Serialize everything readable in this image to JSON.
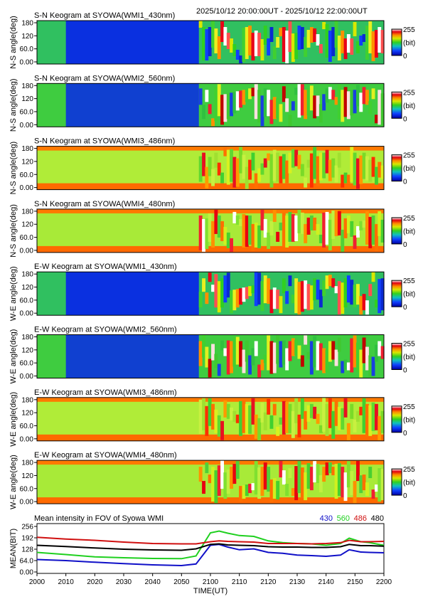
{
  "header": {
    "time_range": "2025/10/12 20:00:00UT - 2025/10/12 22:00:00UT"
  },
  "panels": [
    {
      "title": "S-N Keogram at SYOWA(WMI1_430nm)",
      "ylabel": "N-S angle(deg)",
      "kind": "blue"
    },
    {
      "title": "S-N Keogram at SYOWA(WMI2_560nm)",
      "ylabel": "N-S angle(deg)",
      "kind": "green"
    },
    {
      "title": "S-N Keogram at SYOWA(WMI3_486nm)",
      "ylabel": "N-S angle(deg)",
      "kind": "hbeta"
    },
    {
      "title": "S-N Keogram at SYOWA(WMI4_480nm)",
      "ylabel": "N-S angle(deg)",
      "kind": "bg"
    },
    {
      "title": "E-W Keogram at SYOWA(WMI1_430nm)",
      "ylabel": "W-E angle(deg)",
      "kind": "blue"
    },
    {
      "title": "E-W Keogram at SYOWA(WMI2_560nm)",
      "ylabel": "W-E angle(deg)",
      "kind": "green"
    },
    {
      "title": "E-W Keogram at SYOWA(WMI3_486nm)",
      "ylabel": "W-E angle(deg)",
      "kind": "hbeta"
    },
    {
      "title": "E-W Keogram at SYOWA(WMI4_480nm)",
      "ylabel": "W-E angle(deg)",
      "kind": "bg"
    }
  ],
  "angle_ticks": [
    "0.00",
    "60.0",
    "120",
    "180"
  ],
  "colorbar": {
    "max_label": "255",
    "unit_label": "(bit)",
    "min_label": "0"
  },
  "mean_panel": {
    "title": "Mean intensity in FOV of Syowa WMI",
    "ylabel": "MEAN(BIT)",
    "yticks": [
      "0.00",
      "64.0",
      "128",
      "192",
      "256"
    ],
    "legend": [
      {
        "label": "430",
        "color": "#1010c8"
      },
      {
        "label": "560",
        "color": "#1fd01f"
      },
      {
        "label": "486",
        "color": "#d01010"
      },
      {
        "label": "480",
        "color": "#000000"
      }
    ]
  },
  "x_axis": {
    "xlabel": "TIME(UT)",
    "ticks": [
      "2000",
      "2010",
      "2020",
      "2030",
      "2040",
      "2050",
      "2100",
      "2110",
      "2120",
      "2130",
      "2140",
      "2150",
      "2200"
    ]
  },
  "chart_data": {
    "type": "line",
    "title": "Mean intensity in FOV of Syowa WMI",
    "xlabel": "TIME(UT)",
    "ylabel": "MEAN(BIT)",
    "x": [
      0,
      10,
      20,
      30,
      40,
      50,
      55,
      60,
      63,
      66,
      70,
      75,
      80,
      85,
      90,
      95,
      100,
      105,
      108,
      112,
      115,
      120
    ],
    "x_tick_labels": [
      "2000",
      "2010",
      "2020",
      "2030",
      "2040",
      "2050",
      "2100",
      "2110",
      "2120",
      "2130",
      "2140",
      "2150",
      "2200"
    ],
    "ylim": [
      0,
      256
    ],
    "series": [
      {
        "name": "430",
        "color": "#1010c8",
        "values": [
          70,
          64,
          55,
          47,
          40,
          36,
          45,
          150,
          155,
          140,
          125,
          130,
          110,
          105,
          95,
          92,
          88,
          95,
          125,
          112,
          110,
          108
        ]
      },
      {
        "name": "560",
        "color": "#1fd01f",
        "values": [
          110,
          98,
          85,
          80,
          76,
          75,
          90,
          220,
          230,
          218,
          205,
          200,
          175,
          165,
          160,
          158,
          150,
          160,
          190,
          170,
          165,
          150
        ]
      },
      {
        "name": "486",
        "color": "#d01010",
        "values": [
          195,
          185,
          178,
          168,
          160,
          158,
          158,
          170,
          175,
          172,
          170,
          168,
          160,
          160,
          160,
          158,
          160,
          165,
          178,
          170,
          170,
          172
        ]
      },
      {
        "name": "480",
        "color": "#000000",
        "values": [
          150,
          143,
          135,
          128,
          124,
          122,
          130,
          155,
          158,
          152,
          150,
          148,
          142,
          140,
          140,
          138,
          138,
          142,
          155,
          148,
          148,
          145
        ]
      }
    ]
  }
}
